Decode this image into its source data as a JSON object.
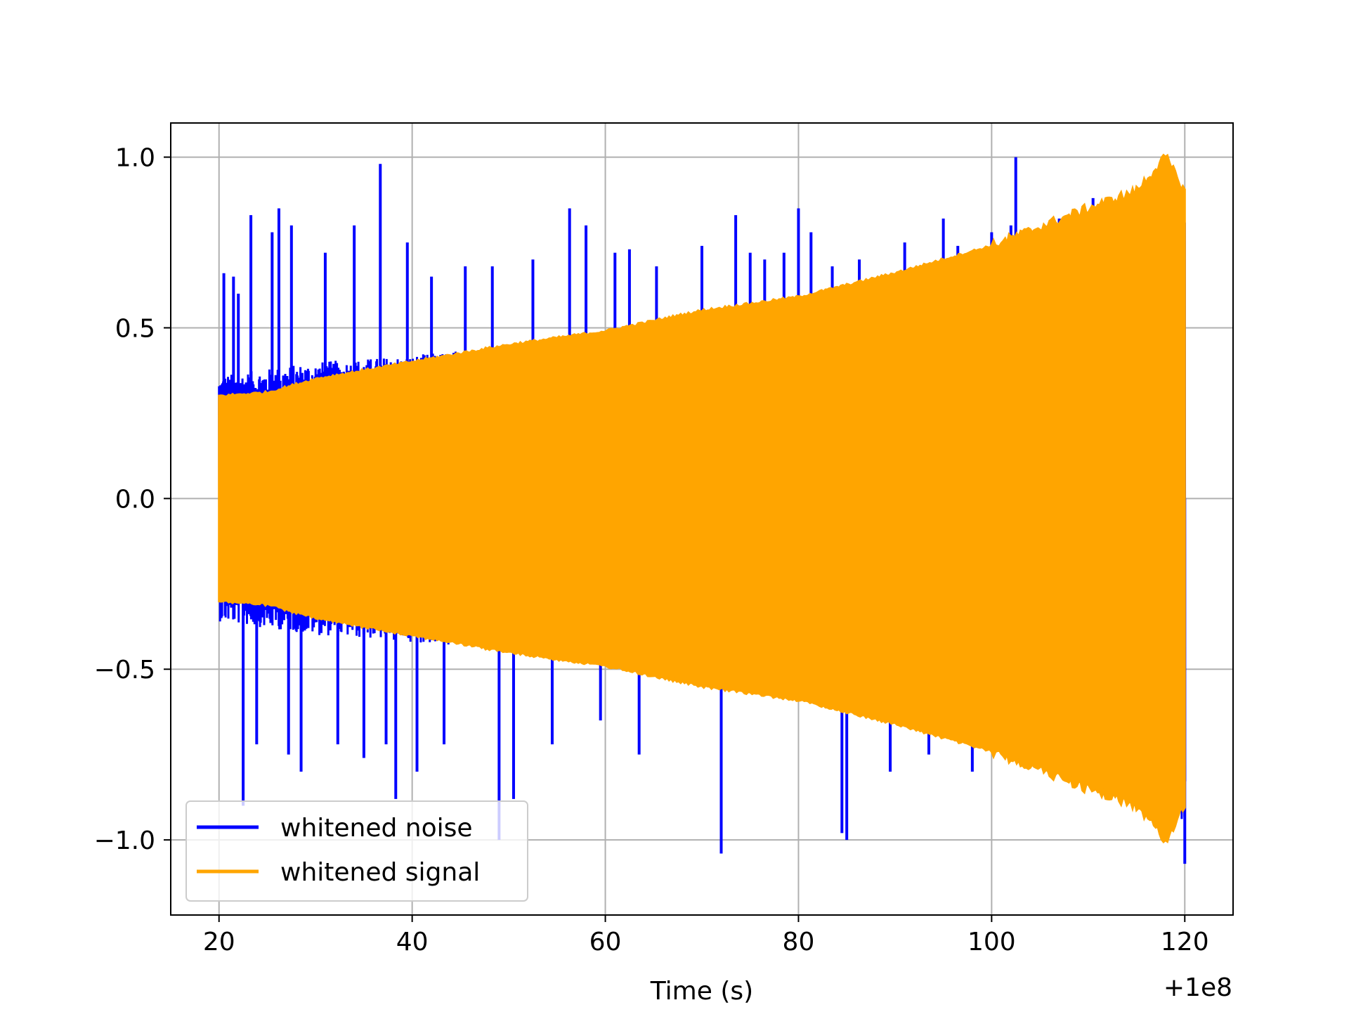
{
  "chart_data": {
    "type": "line",
    "title": "",
    "xlabel": "Time (s)",
    "ylabel": "",
    "x_offset_label": "+1e8",
    "xlim": [
      15,
      125
    ],
    "ylim": [
      -1.22,
      1.1
    ],
    "grid": true,
    "legend_position": "lower-left",
    "x_ticks": [
      20,
      40,
      60,
      80,
      100,
      120
    ],
    "x_tick_labels": [
      "20",
      "40",
      "60",
      "80",
      "100",
      "120"
    ],
    "y_ticks": [
      -1.0,
      -0.5,
      0.0,
      0.5,
      1.0
    ],
    "y_tick_labels": [
      "−1.0",
      "−0.5",
      "0.0",
      "0.5",
      "1.0"
    ],
    "series": [
      {
        "name": "whitened noise",
        "color": "#0000ff",
        "x_range": [
          20,
          120
        ],
        "envelope_upper": [
          [
            20,
            0.36
          ],
          [
            30,
            0.4
          ],
          [
            40,
            0.42
          ],
          [
            50,
            0.45
          ],
          [
            60,
            0.47
          ],
          [
            70,
            0.5
          ],
          [
            80,
            0.55
          ],
          [
            90,
            0.62
          ],
          [
            100,
            0.68
          ],
          [
            110,
            0.78
          ],
          [
            120,
            0.9
          ]
        ],
        "envelope_lower": [
          [
            20,
            -0.36
          ],
          [
            30,
            -0.4
          ],
          [
            40,
            -0.42
          ],
          [
            50,
            -0.45
          ],
          [
            60,
            -0.5
          ],
          [
            70,
            -0.52
          ],
          [
            80,
            -0.58
          ],
          [
            90,
            -0.65
          ],
          [
            100,
            -0.72
          ],
          [
            110,
            -0.82
          ],
          [
            120,
            -0.95
          ]
        ],
        "spikes": [
          [
            20.5,
            0.66
          ],
          [
            21.5,
            0.65
          ],
          [
            22.0,
            0.6
          ],
          [
            22.5,
            -0.9
          ],
          [
            23.3,
            0.83
          ],
          [
            23.9,
            -0.72
          ],
          [
            25.5,
            0.78
          ],
          [
            26.2,
            0.85
          ],
          [
            27.2,
            -0.75
          ],
          [
            27.5,
            0.8
          ],
          [
            28.5,
            -0.8
          ],
          [
            31.0,
            0.72
          ],
          [
            32.3,
            -0.72
          ],
          [
            34.0,
            0.8
          ],
          [
            35.0,
            -0.76
          ],
          [
            36.7,
            0.98
          ],
          [
            37.3,
            -0.72
          ],
          [
            38.3,
            -0.88
          ],
          [
            39.5,
            0.75
          ],
          [
            40.5,
            -0.8
          ],
          [
            42.0,
            0.65
          ],
          [
            43.3,
            -0.72
          ],
          [
            45.5,
            0.68
          ],
          [
            48.3,
            0.68
          ],
          [
            49.0,
            -1.0
          ],
          [
            50.5,
            -0.88
          ],
          [
            52.5,
            0.7
          ],
          [
            54.5,
            -0.72
          ],
          [
            56.3,
            0.85
          ],
          [
            58.0,
            0.8
          ],
          [
            59.5,
            -0.65
          ],
          [
            61.0,
            0.72
          ],
          [
            62.5,
            0.73
          ],
          [
            63.5,
            -0.75
          ],
          [
            65.3,
            0.68
          ],
          [
            70.0,
            0.74
          ],
          [
            72.0,
            -1.04
          ],
          [
            73.5,
            0.83
          ],
          [
            75.0,
            0.72
          ],
          [
            76.5,
            0.7
          ],
          [
            78.5,
            0.72
          ],
          [
            80.0,
            0.85
          ],
          [
            81.3,
            0.78
          ],
          [
            83.5,
            0.68
          ],
          [
            84.5,
            -0.98
          ],
          [
            85.0,
            -1.0
          ],
          [
            86.3,
            0.7
          ],
          [
            89.5,
            -0.8
          ],
          [
            91.0,
            0.75
          ],
          [
            93.5,
            -0.75
          ],
          [
            95.0,
            0.82
          ],
          [
            96.5,
            0.74
          ],
          [
            98.0,
            -0.8
          ],
          [
            100.0,
            0.78
          ],
          [
            100.5,
            -0.72
          ],
          [
            102.0,
            0.8
          ],
          [
            102.5,
            1.0
          ],
          [
            104.0,
            0.75
          ],
          [
            107.0,
            0.82
          ],
          [
            110.5,
            0.88
          ],
          [
            115.0,
            0.9
          ],
          [
            118.0,
            0.92
          ],
          [
            120.0,
            -1.07
          ]
        ]
      },
      {
        "name": "whitened signal",
        "color": "#ffa500",
        "x_range": [
          20,
          120
        ],
        "envelope": [
          [
            20,
            0.3
          ],
          [
            25,
            0.31
          ],
          [
            30,
            0.35
          ],
          [
            40,
            0.4
          ],
          [
            50,
            0.45
          ],
          [
            60,
            0.49
          ],
          [
            70,
            0.55
          ],
          [
            80,
            0.59
          ],
          [
            90,
            0.66
          ],
          [
            100,
            0.74
          ],
          [
            110,
            0.85
          ],
          [
            115,
            0.9
          ],
          [
            118,
            1.0
          ],
          [
            120,
            0.9
          ]
        ]
      }
    ]
  }
}
